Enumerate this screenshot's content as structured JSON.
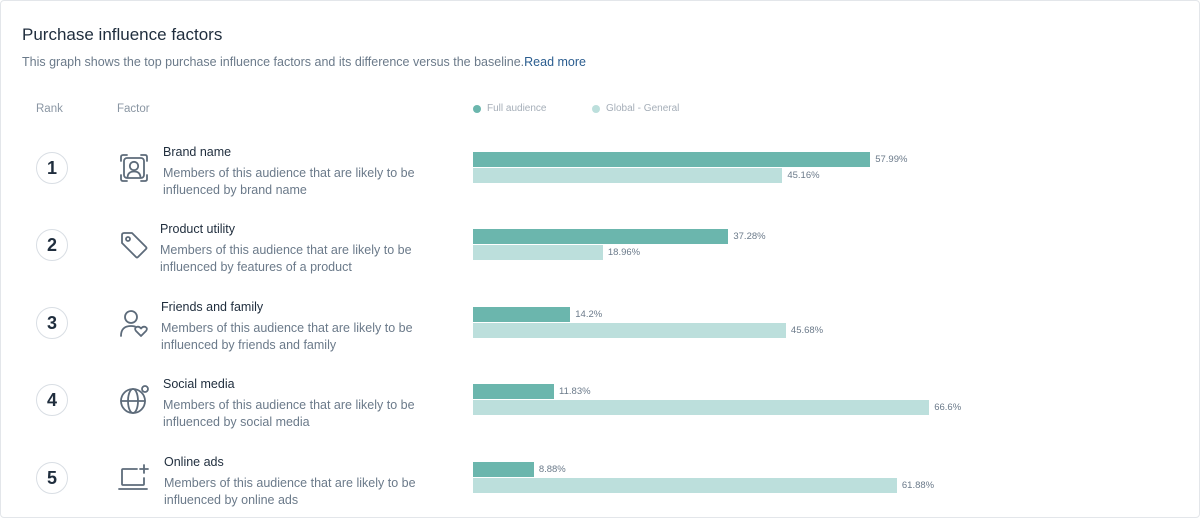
{
  "title": "Purchase influence factors",
  "subtitle": "This graph shows the top purchase influence factors and its difference versus the baseline.",
  "read_more": "Read more",
  "headers": {
    "rank": "Rank",
    "factor": "Factor"
  },
  "colors": {
    "full": "#6bb6ad",
    "global": "#bcdfdc"
  },
  "chart_data": {
    "type": "bar",
    "orientation": "horizontal",
    "title": "Purchase influence factors",
    "categories": [
      "Brand name",
      "Product utility",
      "Friends and family",
      "Social media",
      "Online ads"
    ],
    "series": [
      {
        "name": "Full audience",
        "values": [
          57.99,
          37.28,
          14.2,
          11.83,
          8.88
        ],
        "labels": [
          "57.99%",
          "37.28%",
          "14.2%",
          "11.83%",
          "8.88%"
        ]
      },
      {
        "name": "Global - General",
        "values": [
          45.16,
          18.96,
          45.68,
          66.6,
          61.88
        ],
        "labels": [
          "45.16%",
          "18.96%",
          "45.68%",
          "66.6%",
          "61.88%"
        ]
      }
    ],
    "xlim": [
      0,
      100
    ],
    "legend": "top"
  },
  "rows": [
    {
      "rank": "1",
      "icon": "portrait-icon",
      "name": "Brand name",
      "desc": "Members of this audience that are likely to be influenced by brand name"
    },
    {
      "rank": "2",
      "icon": "tag-icon",
      "name": "Product utility",
      "desc": "Members of this audience that are likely to be influenced by features of a product"
    },
    {
      "rank": "3",
      "icon": "person-heart-icon",
      "name": "Friends and family",
      "desc": "Members of this audience that are likely to be influenced by friends and family"
    },
    {
      "rank": "4",
      "icon": "globe-icon",
      "name": "Social media",
      "desc": "Members of this audience that are likely to be influenced by social media"
    },
    {
      "rank": "5",
      "icon": "laptop-plus-icon",
      "name": "Online ads",
      "desc": "Members of this audience that are likely to be influenced by online ads"
    }
  ]
}
